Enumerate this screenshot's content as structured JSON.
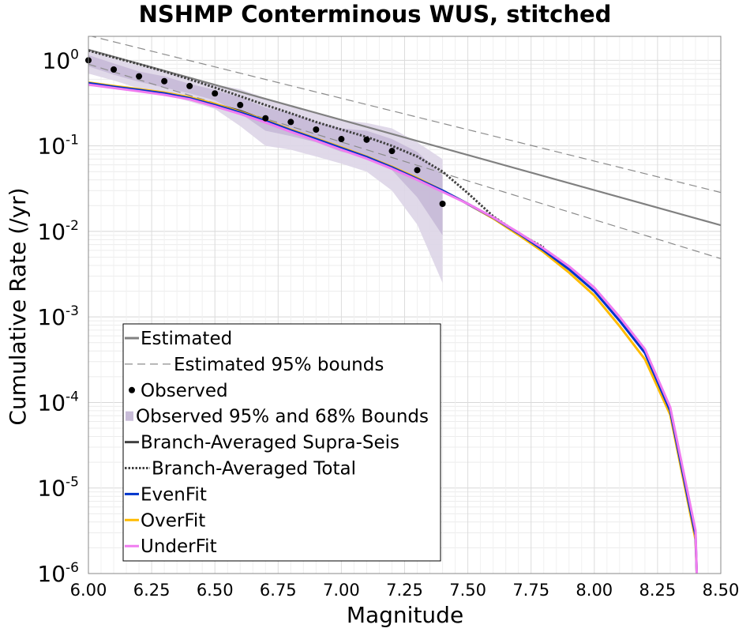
{
  "chart_data": {
    "type": "line",
    "title": "NSHMP Conterminous WUS, stitched",
    "xlabel": "Magnitude",
    "ylabel": "Cumulative Rate (/yr)",
    "xlim": [
      6.0,
      8.5
    ],
    "ylim_log10": [
      -6,
      0.28
    ],
    "y_scale": "log",
    "grid": true,
    "x_ticks": [
      "6.00",
      "6.25",
      "6.50",
      "6.75",
      "7.00",
      "7.25",
      "7.50",
      "7.75",
      "8.00",
      "8.25",
      "8.50"
    ],
    "x_tick_values": [
      6.0,
      6.25,
      6.5,
      6.75,
      7.0,
      7.25,
      7.5,
      7.75,
      8.0,
      8.25,
      8.5
    ],
    "y_ticks": [
      {
        "base": "10",
        "exp": "-6",
        "value": -6
      },
      {
        "base": "10",
        "exp": "-5",
        "value": -5
      },
      {
        "base": "10",
        "exp": "-4",
        "value": -4
      },
      {
        "base": "10",
        "exp": "-3",
        "value": -3
      },
      {
        "base": "10",
        "exp": "-2",
        "value": -2
      },
      {
        "base": "10",
        "exp": "-1",
        "value": -1
      },
      {
        "base": "10",
        "exp": "0",
        "value": 0
      }
    ],
    "legend_position": "bottom-left",
    "legend": [
      {
        "label": "Estimated",
        "style": "line",
        "color": "#808080"
      },
      {
        "label": "Estimated 95% bounds",
        "style": "dashed",
        "color": "#8c8c8c"
      },
      {
        "label": "Observed",
        "style": "dot",
        "color": "#000000"
      },
      {
        "label": "Observed 95% and 68% Bounds",
        "style": "band",
        "color": "#c8bcd8"
      },
      {
        "label": "Branch-Averaged Supra-Seis",
        "style": "line",
        "color": "#404040"
      },
      {
        "label": "Branch-Averaged Total",
        "style": "dotted",
        "color": "#404040"
      },
      {
        "label": "EvenFit",
        "style": "line",
        "color": "#0033cc"
      },
      {
        "label": "OverFit",
        "style": "line",
        "color": "#ffbb00"
      },
      {
        "label": "UnderFit",
        "style": "line",
        "color": "#f07cf0"
      }
    ],
    "series": [
      {
        "key": "estimated",
        "style": "solid",
        "color": "#808080",
        "width": 2.2,
        "x": [
          6.0,
          8.5
        ],
        "y": [
          1.33,
          0.0118
        ]
      },
      {
        "key": "estimated_upper",
        "style": "dashed",
        "color": "#8c8c8c",
        "width": 1.2,
        "x": [
          6.0,
          8.5
        ],
        "y": [
          1.95,
          0.0285
        ]
      },
      {
        "key": "estimated_lower",
        "style": "dashed",
        "color": "#8c8c8c",
        "width": 1.2,
        "x": [
          6.0,
          8.5
        ],
        "y": [
          0.9,
          0.0048
        ]
      },
      {
        "key": "branch_averaged_total",
        "style": "dotted",
        "color": "#404040",
        "width": 3,
        "x": [
          6.0,
          6.1,
          6.2,
          6.3,
          6.4,
          6.5,
          6.6,
          6.7,
          6.8,
          6.9,
          7.0,
          7.1,
          7.2,
          7.3,
          7.4,
          7.5,
          7.6,
          7.7,
          7.8
        ],
        "y": [
          1.3,
          1.08,
          0.9,
          0.74,
          0.6,
          0.48,
          0.38,
          0.3,
          0.24,
          0.19,
          0.155,
          0.127,
          0.1,
          0.075,
          0.05,
          0.028,
          0.015,
          0.0095,
          0.0065
        ]
      },
      {
        "key": "branch_averaged_supra_seis",
        "style": "solid",
        "color": "#404040",
        "width": 1.6,
        "x": [
          6.0,
          6.2,
          6.4,
          6.6,
          6.8,
          7.0,
          7.2,
          7.4,
          7.6,
          7.8
        ],
        "y": [
          0.53,
          0.46,
          0.37,
          0.26,
          0.155,
          0.094,
          0.056,
          0.03,
          0.014,
          0.0062
        ]
      },
      {
        "key": "overfit",
        "style": "solid",
        "color": "#ffbb00",
        "width": 3,
        "x": [
          6.0,
          6.1,
          6.2,
          6.3,
          6.4,
          6.5,
          6.6,
          6.7,
          6.8,
          6.9,
          7.0,
          7.1,
          7.2,
          7.3,
          7.4,
          7.5,
          7.6,
          7.7,
          7.8,
          7.9,
          8.0,
          8.1,
          8.2,
          8.3,
          8.4,
          8.405
        ],
        "y": [
          0.55,
          0.5,
          0.46,
          0.42,
          0.37,
          0.31,
          0.25,
          0.2,
          0.155,
          0.122,
          0.096,
          0.075,
          0.057,
          0.042,
          0.03,
          0.021,
          0.0142,
          0.0091,
          0.0057,
          0.0033,
          0.00178,
          0.00078,
          0.00032,
          7.2e-05,
          2.5e-06,
          1e-06
        ]
      },
      {
        "key": "evenfit",
        "style": "solid",
        "color": "#0033cc",
        "width": 3,
        "x": [
          6.0,
          6.1,
          6.2,
          6.3,
          6.4,
          6.5,
          6.6,
          6.7,
          6.8,
          6.9,
          7.0,
          7.1,
          7.2,
          7.3,
          7.4,
          7.5,
          7.6,
          7.7,
          7.8,
          7.9,
          8.0,
          8.1,
          8.2,
          8.3,
          8.4,
          8.405
        ],
        "y": [
          0.54,
          0.49,
          0.45,
          0.41,
          0.36,
          0.3,
          0.245,
          0.196,
          0.152,
          0.12,
          0.094,
          0.074,
          0.056,
          0.041,
          0.03,
          0.021,
          0.0145,
          0.0095,
          0.006,
          0.0036,
          0.002,
          0.0009,
          0.00038,
          8e-05,
          2.8e-06,
          1e-06
        ]
      },
      {
        "key": "underfit",
        "style": "solid",
        "color": "#f07cf0",
        "width": 3,
        "x": [
          6.0,
          6.1,
          6.2,
          6.3,
          6.4,
          6.5,
          6.6,
          6.7,
          6.8,
          6.9,
          7.0,
          7.1,
          7.2,
          7.3,
          7.4,
          7.5,
          7.6,
          7.7,
          7.8,
          7.9,
          8.0,
          8.1,
          8.2,
          8.3,
          8.4,
          8.405
        ],
        "y": [
          0.52,
          0.475,
          0.435,
          0.395,
          0.35,
          0.29,
          0.236,
          0.188,
          0.146,
          0.115,
          0.09,
          0.071,
          0.054,
          0.04,
          0.029,
          0.021,
          0.0146,
          0.0097,
          0.0063,
          0.0039,
          0.0022,
          0.001,
          0.00042,
          8.8e-05,
          3.2e-06,
          1e-06
        ]
      }
    ],
    "observed_bounds_95": {
      "color": "#ddd5e7",
      "x": [
        6.0,
        6.1,
        6.2,
        6.3,
        6.4,
        6.5,
        6.6,
        6.7,
        6.8,
        6.9,
        7.0,
        7.1,
        7.2,
        7.3,
        7.4
      ],
      "upper": [
        1.3,
        1.05,
        0.87,
        0.74,
        0.62,
        0.52,
        0.46,
        0.36,
        0.3,
        0.24,
        0.2,
        0.185,
        0.16,
        0.11,
        0.07
      ],
      "lower": [
        0.7,
        0.58,
        0.47,
        0.4,
        0.33,
        0.27,
        0.17,
        0.1,
        0.09,
        0.075,
        0.062,
        0.05,
        0.03,
        0.012,
        0.0025
      ]
    },
    "observed_bounds_68": {
      "color": "#c6b9d7",
      "x": [
        6.0,
        6.1,
        6.2,
        6.3,
        6.4,
        6.5,
        6.6,
        6.7,
        6.8,
        6.9,
        7.0,
        7.1,
        7.2,
        7.3,
        7.4
      ],
      "upper": [
        1.15,
        0.92,
        0.74,
        0.65,
        0.53,
        0.45,
        0.37,
        0.28,
        0.24,
        0.19,
        0.16,
        0.15,
        0.12,
        0.085,
        0.045
      ],
      "lower": [
        0.85,
        0.68,
        0.56,
        0.48,
        0.41,
        0.34,
        0.24,
        0.15,
        0.13,
        0.11,
        0.085,
        0.075,
        0.052,
        0.025,
        0.009
      ]
    },
    "observed": {
      "color": "#000000",
      "x": [
        6.0,
        6.1,
        6.2,
        6.3,
        6.4,
        6.5,
        6.6,
        6.7,
        6.8,
        6.9,
        7.0,
        7.1,
        7.2,
        7.3,
        7.4
      ],
      "y": [
        1.0,
        0.78,
        0.65,
        0.57,
        0.5,
        0.41,
        0.3,
        0.21,
        0.19,
        0.155,
        0.12,
        0.118,
        0.087,
        0.052,
        0.021
      ]
    }
  }
}
